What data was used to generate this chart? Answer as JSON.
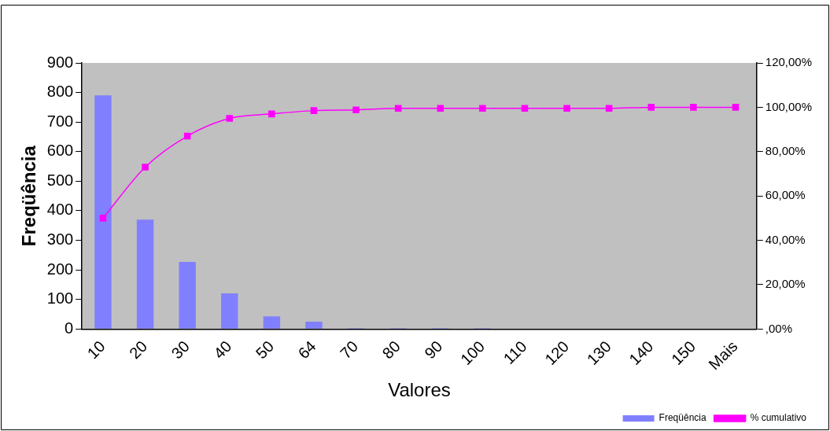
{
  "chart_data": {
    "type": "bar",
    "xlabel": "Valores",
    "ylabel": "Freqüência",
    "categories": [
      "10",
      "20",
      "30",
      "40",
      "50",
      "64",
      "70",
      "80",
      "90",
      "100",
      "110",
      "120",
      "130",
      "140",
      "150",
      "Mais"
    ],
    "series": [
      {
        "name": "Freqüência",
        "color": "#8080ff",
        "values": [
          790,
          370,
          227,
          121,
          43,
          25,
          3,
          3,
          3,
          3,
          0,
          0,
          0,
          0,
          0,
          0
        ]
      },
      {
        "name": "% cumulativo",
        "type": "line",
        "axis": "y2",
        "color": "#ff00ff",
        "marker": "square",
        "values": [
          50,
          73,
          87,
          95,
          97,
          98.5,
          98.8,
          99.5,
          99.5,
          99.5,
          99.5,
          99.5,
          99.5,
          100,
          100,
          100
        ]
      }
    ],
    "ylim": [
      0,
      900
    ],
    "yticks": [
      0,
      100,
      200,
      300,
      400,
      500,
      600,
      700,
      800,
      900
    ],
    "y2lim": [
      0,
      120
    ],
    "y2ticks": [
      {
        "value": 0,
        "label": ",00%"
      },
      {
        "value": 20,
        "label": "20,00%"
      },
      {
        "value": 40,
        "label": "40,00%"
      },
      {
        "value": 60,
        "label": "60,00%"
      },
      {
        "value": 80,
        "label": "80,00%"
      },
      {
        "value": 100,
        "label": "100,00%"
      },
      {
        "value": 120,
        "label": "120,00%"
      }
    ],
    "grid": false,
    "legend": "bottom right"
  }
}
